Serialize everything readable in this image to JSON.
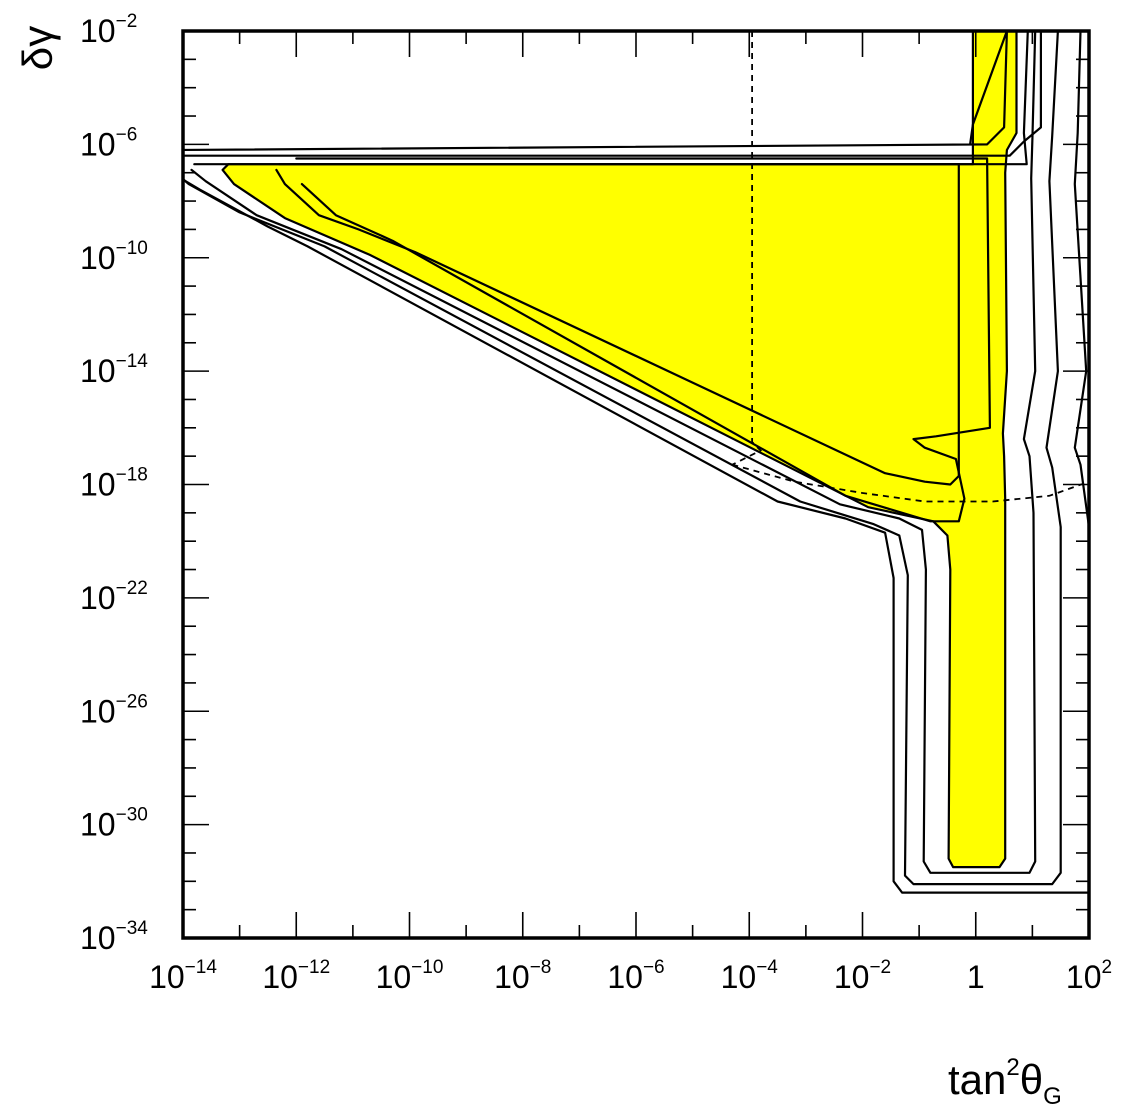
{
  "chart_data": {
    "type": "contour",
    "xlabel": {
      "base": "tan",
      "sup": "2",
      "main": "θ",
      "sub": "G"
    },
    "ylabel": "δγ",
    "x_scale": "log",
    "y_scale": "log",
    "xlim": [
      1e-14,
      100
    ],
    "ylim": [
      1e-34,
      0.01
    ],
    "x_ticks": [
      {
        "base": "10",
        "exp": "−14",
        "value": 1e-14
      },
      {
        "base": "10",
        "exp": "−12",
        "value": 1e-12
      },
      {
        "base": "10",
        "exp": "−10",
        "value": 1e-10
      },
      {
        "base": "10",
        "exp": "−8",
        "value": 1e-08
      },
      {
        "base": "10",
        "exp": "−6",
        "value": 1e-06
      },
      {
        "base": "10",
        "exp": "−4",
        "value": 0.0001
      },
      {
        "base": "10",
        "exp": "−2",
        "value": 0.01
      },
      {
        "base": "1",
        "exp": "",
        "value": 1
      },
      {
        "base": "10",
        "exp": "2",
        "value": 100
      }
    ],
    "y_ticks": [
      {
        "base": "10",
        "exp": "−2",
        "value": 0.01
      },
      {
        "base": "10",
        "exp": "−6",
        "value": 1e-06
      },
      {
        "base": "10",
        "exp": "−10",
        "value": 1e-10
      },
      {
        "base": "10",
        "exp": "−14",
        "value": 1e-14
      },
      {
        "base": "10",
        "exp": "−18",
        "value": 1e-18
      },
      {
        "base": "10",
        "exp": "−22",
        "value": 1e-22
      },
      {
        "base": "10",
        "exp": "−26",
        "value": 1e-26
      },
      {
        "base": "10",
        "exp": "−30",
        "value": 1e-30
      },
      {
        "base": "10",
        "exp": "−34",
        "value": 1e-34
      }
    ],
    "colors": {
      "fill": "#ffff00",
      "line": "#000000",
      "frame": "#000000"
    },
    "regions": [
      {
        "id": "filled-region",
        "fill": true,
        "points_log10": [
          [
            -13.2,
            -6.7
          ],
          [
            -0.05,
            -6.7
          ],
          [
            -0.05,
            -2
          ],
          [
            0.72,
            -2
          ],
          [
            0.72,
            -5.6
          ],
          [
            0.55,
            -6.2
          ],
          [
            0.52,
            -7
          ],
          [
            0.55,
            -14
          ],
          [
            0.48,
            -16.2
          ],
          [
            0.5,
            -17
          ],
          [
            0.52,
            -18.5
          ],
          [
            0.52,
            -31.2
          ],
          [
            0.42,
            -31.5
          ],
          [
            -0.4,
            -31.5
          ],
          [
            -0.48,
            -31.2
          ],
          [
            -0.45,
            -21
          ],
          [
            -0.5,
            -19.8
          ],
          [
            -0.75,
            -19.3
          ],
          [
            -1.9,
            -18.8
          ],
          [
            -10.7,
            -9.9
          ],
          [
            -12.2,
            -8.6
          ],
          [
            -13.1,
            -7.4
          ],
          [
            -13.3,
            -6.9
          ]
        ]
      },
      {
        "id": "contour-line-inner-band",
        "fill": false,
        "points_log10": [
          [
            -13.8,
            -6.7
          ],
          [
            0.9,
            -6.7
          ],
          [
            0.85,
            -5.6
          ],
          [
            0.92,
            -2
          ],
          [
            1.05,
            -2
          ],
          [
            1.0,
            -5.8
          ],
          [
            0.98,
            -7.2
          ],
          [
            1.05,
            -14
          ],
          [
            0.85,
            -16.4
          ],
          [
            0.95,
            -17
          ],
          [
            1.02,
            -19
          ],
          [
            1.05,
            -31.3
          ],
          [
            0.95,
            -31.7
          ],
          [
            -0.8,
            -31.7
          ],
          [
            -0.92,
            -31.3
          ],
          [
            -0.88,
            -21
          ],
          [
            -0.95,
            -19.6
          ],
          [
            -1.35,
            -19.2
          ],
          [
            -2.4,
            -18.7
          ],
          [
            -11.2,
            -9.7
          ],
          [
            -12.7,
            -8.5
          ],
          [
            -13.6,
            -7.3
          ],
          [
            -13.85,
            -6.9
          ]
        ]
      },
      {
        "id": "contour-line-middle-band",
        "fill": false,
        "points_log10": [
          [
            -14.2,
            -6.4
          ],
          [
            0.6,
            -6.4
          ],
          [
            0.85,
            -5.9
          ],
          [
            1.15,
            -5.4
          ],
          [
            1.15,
            -2
          ],
          [
            1.45,
            -2
          ],
          [
            1.35,
            -5.7
          ],
          [
            1.3,
            -7.3
          ],
          [
            1.45,
            -14
          ],
          [
            1.25,
            -16.7
          ],
          [
            1.35,
            -17.4
          ],
          [
            1.5,
            -19.5
          ],
          [
            1.5,
            -31.7
          ],
          [
            1.35,
            -32.1
          ],
          [
            -1.1,
            -32.1
          ],
          [
            -1.25,
            -31.8
          ],
          [
            -1.2,
            -21.2
          ],
          [
            -1.35,
            -19.8
          ],
          [
            -1.8,
            -19.4
          ],
          [
            -3.1,
            -18.6
          ],
          [
            -11.5,
            -9.6
          ],
          [
            -13.0,
            -8.4
          ],
          [
            -13.9,
            -7.4
          ],
          [
            -14.3,
            -6.7
          ]
        ]
      },
      {
        "id": "contour-line-outer-band",
        "fill": false,
        "points_log10": [
          [
            -14.55,
            -6.6
          ],
          [
            -14.1,
            -6.2
          ],
          [
            0.2,
            -6.0
          ],
          [
            0.5,
            -5.4
          ],
          [
            0.55,
            -2
          ],
          [
            -0.05,
            -5.3
          ],
          [
            -0.1,
            -6.0
          ]
        ]
      },
      {
        "id": "contour-line-outer-lower",
        "fill": false,
        "points_log10": [
          [
            -14.55,
            -6.6
          ],
          [
            -13.7,
            -7.6
          ],
          [
            -12.5,
            -8.9
          ],
          [
            -11.8,
            -9.6
          ],
          [
            -3.5,
            -18.6
          ],
          [
            -2.3,
            -19.2
          ],
          [
            -1.6,
            -19.7
          ],
          [
            -1.45,
            -21.3
          ],
          [
            -1.45,
            -32.0
          ],
          [
            -1.3,
            -32.4
          ],
          [
            2.2,
            -32.4
          ],
          [
            2.35,
            -32.0
          ],
          [
            2.2,
            -31.0
          ],
          [
            2.1,
            -21.0
          ],
          [
            2.0,
            -19.5
          ],
          [
            1.85,
            -17.3
          ],
          [
            1.75,
            -16.7
          ],
          [
            1.95,
            -14
          ],
          [
            1.75,
            -7.4
          ],
          [
            1.8,
            -5.6
          ],
          [
            1.85,
            -2
          ]
        ]
      },
      {
        "id": "contour-line-inner-loop",
        "fill": false,
        "points_log10": [
          [
            -12.3,
            -6.7
          ],
          [
            -0.3,
            -6.7
          ],
          [
            -0.3,
            -17.7
          ],
          [
            -0.45,
            -18.0
          ],
          [
            -0.9,
            -17.9
          ],
          [
            -1.6,
            -17.6
          ],
          [
            -9.9,
            -9.8
          ],
          [
            -10.9,
            -9.0
          ],
          [
            -11.6,
            -8.5
          ],
          [
            -12.2,
            -7.4
          ],
          [
            -12.35,
            -6.9
          ]
        ]
      },
      {
        "id": "contour-line-inner-notch",
        "fill": false,
        "points_log10": [
          [
            -12.0,
            -6.5
          ],
          [
            0.2,
            -6.5
          ],
          [
            0.25,
            -16.0
          ],
          [
            -0.7,
            -16.3
          ],
          [
            -1.1,
            -16.4
          ],
          [
            -0.9,
            -16.7
          ],
          [
            -0.35,
            -17.1
          ],
          [
            -0.2,
            -18.5
          ],
          [
            -0.3,
            -19.3
          ],
          [
            -0.8,
            -19.3
          ],
          [
            -2.3,
            -18.4
          ],
          [
            -10.3,
            -9.4
          ],
          [
            -11.3,
            -8.5
          ],
          [
            -11.9,
            -7.4
          ]
        ]
      }
    ],
    "dashed_lines": [
      {
        "id": "vertical-dashed-line",
        "points_log10": [
          [
            -3.95,
            -2
          ],
          [
            -3.95,
            -16.5
          ],
          [
            -3.8,
            -16.8
          ],
          [
            -4.3,
            -17.3
          ]
        ]
      },
      {
        "id": "curved-dashed-line",
        "points_log10": [
          [
            -4.3,
            -17.3
          ],
          [
            -3.2,
            -17.9
          ],
          [
            -2.0,
            -18.3
          ],
          [
            -0.9,
            -18.6
          ],
          [
            0.3,
            -18.6
          ],
          [
            1.3,
            -18.4
          ],
          [
            2.0,
            -17.9
          ]
        ]
      }
    ]
  }
}
